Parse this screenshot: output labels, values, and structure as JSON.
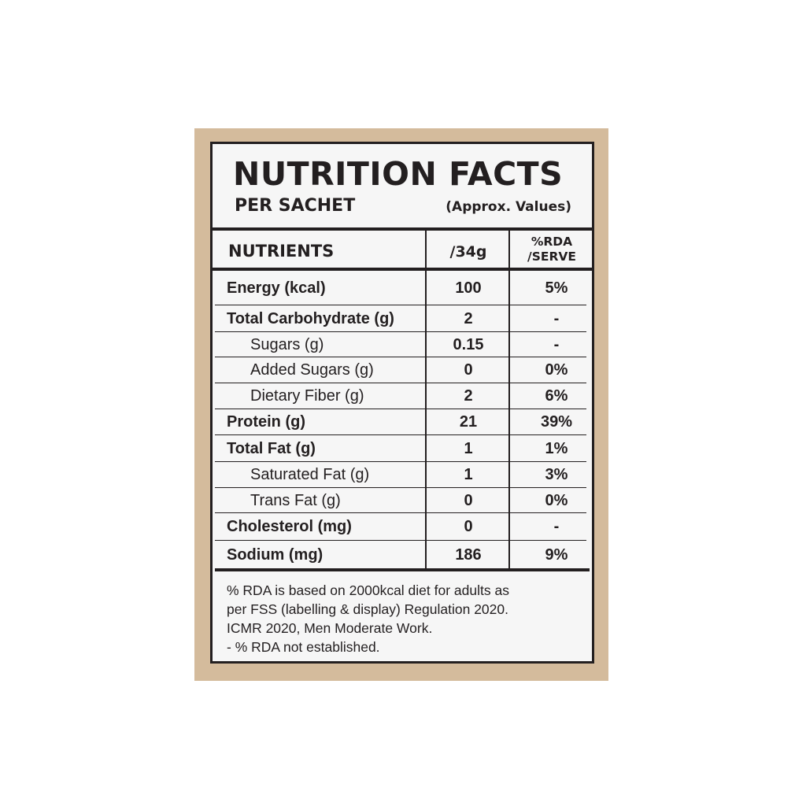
{
  "colors": {
    "background": "#d4bb9c",
    "panel": "#f6f6f6",
    "ink": "#231f20"
  },
  "header": {
    "title": "NUTRITION FACTS",
    "subtitle": "PER SACHET",
    "note": "(Approx. Values)"
  },
  "columns": {
    "nutrients": "NUTRIENTS",
    "per": "/34g",
    "rda_line1": "%RDA",
    "rda_line2": "/SERVE"
  },
  "rows": [
    {
      "name": "Energy (kcal)",
      "value": "100",
      "rda": "5%",
      "bold": true,
      "indent": false
    },
    {
      "name": "Total Carbohydrate (g)",
      "value": "2",
      "rda": "-",
      "bold": true,
      "indent": false
    },
    {
      "name": "Sugars (g)",
      "value": "0.15",
      "rda": "-",
      "bold": false,
      "indent": true
    },
    {
      "name": "Added Sugars (g)",
      "value": "0",
      "rda": "0%",
      "bold": false,
      "indent": true
    },
    {
      "name": "Dietary Fiber (g)",
      "value": "2",
      "rda": "6%",
      "bold": false,
      "indent": true
    },
    {
      "name": "Protein (g)",
      "value": "21",
      "rda": "39%",
      "bold": true,
      "indent": false
    },
    {
      "name": "Total Fat (g)",
      "value": "1",
      "rda": "1%",
      "bold": true,
      "indent": false
    },
    {
      "name": "Saturated Fat (g)",
      "value": "1",
      "rda": "3%",
      "bold": false,
      "indent": true
    },
    {
      "name": "Trans Fat (g)",
      "value": "0",
      "rda": "0%",
      "bold": false,
      "indent": true
    },
    {
      "name": "Cholesterol (mg)",
      "value": "0",
      "rda": "-",
      "bold": true,
      "indent": false
    },
    {
      "name": "Sodium (mg)",
      "value": "186",
      "rda": "9%",
      "bold": true,
      "indent": false
    }
  ],
  "footnote": [
    "% RDA is based on 2000kcal diet for adults as",
    "per FSS (labelling & display) Regulation 2020.",
    "ICMR 2020, Men Moderate Work.",
    "- % RDA not established."
  ]
}
